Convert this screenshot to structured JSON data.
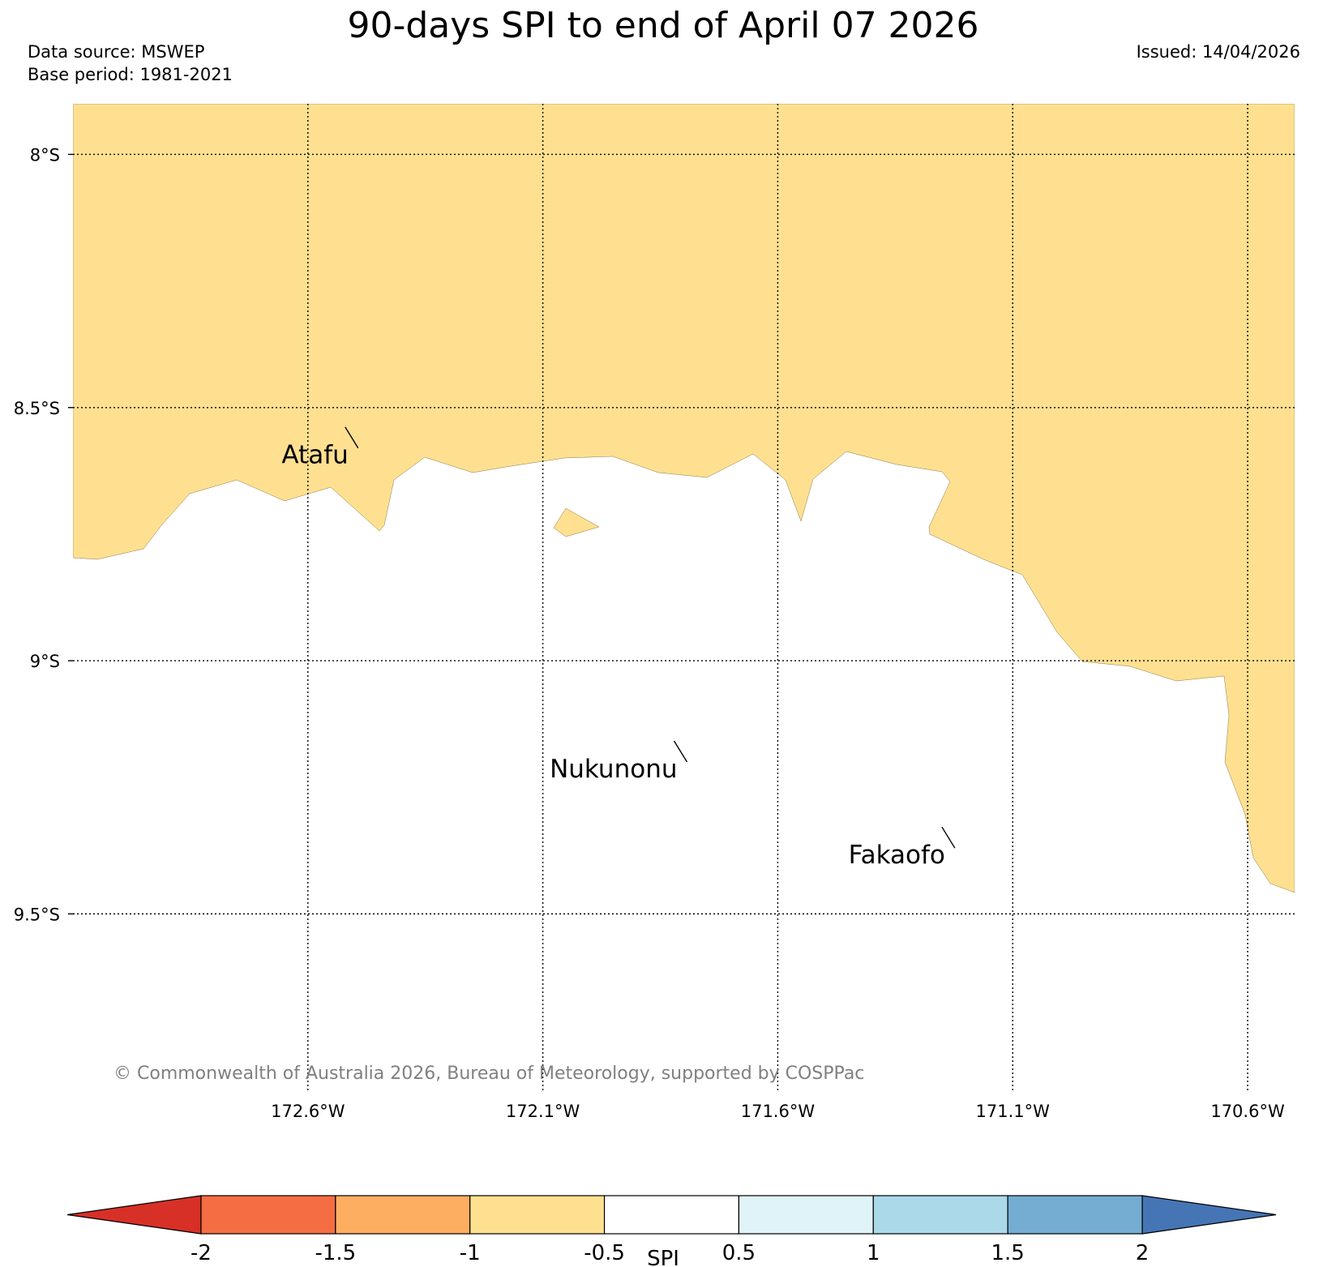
{
  "title": "90-days SPI to end of April 07 2026",
  "data_source": "Data source: MSWEP",
  "base_period": "Base period: 1981-2021",
  "issued": "Issued: 14/04/2026",
  "copyright": "© Commonwealth of Australia 2026, Bureau of Meteorology, supported by COSPPac",
  "map": {
    "lon_range": [
      -173.1,
      -170.5
    ],
    "lat_range": [
      -9.85,
      -7.9
    ],
    "lat_ticks": [
      {
        "value": -8.0,
        "label": "8°S"
      },
      {
        "value": -8.5,
        "label": "8.5°S"
      },
      {
        "value": -9.0,
        "label": "9°S"
      },
      {
        "value": -9.5,
        "label": "9.5°S"
      }
    ],
    "lon_ticks": [
      {
        "value": -172.6,
        "label": "172.6°W"
      },
      {
        "value": -172.1,
        "label": "172.1°W"
      },
      {
        "value": -171.6,
        "label": "171.6°W"
      },
      {
        "value": -171.1,
        "label": "171.1°W"
      },
      {
        "value": -170.6,
        "label": "170.6°W"
      }
    ],
    "places": [
      {
        "name": "Atafu",
        "lon": -172.5,
        "lat": -8.58
      },
      {
        "name": "Nukunonu",
        "lon": -171.8,
        "lat": -9.2
      },
      {
        "name": "Fakaofo",
        "lon": -171.23,
        "lat": -9.37
      }
    ],
    "fill_color": "#fee090",
    "dry_class": "-1 to -0.5"
  },
  "colorbar": {
    "label": "SPI",
    "ticks": [
      "-2",
      "-1.5",
      "-1",
      "-0.5",
      "0.5",
      "1",
      "1.5",
      "2"
    ],
    "colors": [
      "#d73027",
      "#f46d43",
      "#fdae61",
      "#fee090",
      "#ffffff",
      "#e0f3f8",
      "#abd9e9",
      "#74add1",
      "#4575b4"
    ]
  }
}
